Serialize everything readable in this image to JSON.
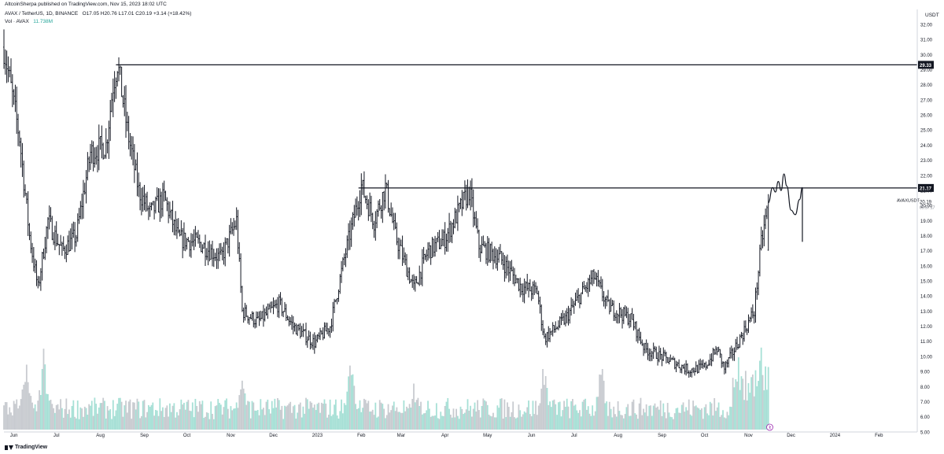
{
  "header": {
    "publisher": "AltcoinSherpa published on TradingView.com, Nov 15, 2023 18:02 UTC",
    "symbol": "AVAX / TetherUS, 1D, BINANCE",
    "ohlc": "O17.05 H20.76 L17.01 C20.19 +3.14 (+18.42%)",
    "vol_label": "Vol · AVAX",
    "vol_value": "11.738M"
  },
  "footer": {
    "brand": "TradingView"
  },
  "colors": {
    "bar": "#131722",
    "volume": "#c8cbd0",
    "volume_alt": "#a7e0d6",
    "line": "#131722",
    "accent": "#9c27b0"
  },
  "chart_data": {
    "type": "ohlc",
    "axis_unit": "USDT",
    "y_ticks": [
      "32.00",
      "31.00",
      "30.00",
      "29.00",
      "28.00",
      "27.00",
      "26.00",
      "25.00",
      "24.00",
      "23.00",
      "22.00",
      "21.00",
      "20.00",
      "19.00",
      "18.00",
      "17.00",
      "16.00",
      "15.00",
      "14.00",
      "13.00",
      "12.00",
      "11.00",
      "10.00",
      "9.00",
      "8.00",
      "7.00",
      "6.00",
      "5.00"
    ],
    "ylim": [
      5,
      33
    ],
    "x_ticks": [
      "Jun",
      "Jul",
      "Aug",
      "Sep",
      "Oct",
      "Nov",
      "Dec",
      "2023",
      "Feb",
      "Mar",
      "Apr",
      "May",
      "Jun",
      "Jul",
      "Aug",
      "Sep",
      "Oct",
      "Nov",
      "Dec",
      "2024",
      "Feb"
    ],
    "horizontal_levels": [
      {
        "value": 29.33,
        "label": "29.33"
      },
      {
        "value": 21.17,
        "label": "21.17"
      }
    ],
    "last_price": {
      "symbol": "AVAXUSDT",
      "value": "20.19",
      "countdown": "05:57:17"
    },
    "price_path": [
      [
        "2022-05-25",
        30.5
      ],
      [
        "2022-06-05",
        24.5
      ],
      [
        "2022-06-12",
        18.0
      ],
      [
        "2022-06-18",
        14.5
      ],
      [
        "2022-06-25",
        19.0
      ],
      [
        "2022-07-05",
        17.0
      ],
      [
        "2022-07-15",
        18.0
      ],
      [
        "2022-07-25",
        23.5
      ],
      [
        "2022-08-05",
        24.0
      ],
      [
        "2022-08-10",
        28.0
      ],
      [
        "2022-08-13",
        29.5
      ],
      [
        "2022-08-20",
        25.0
      ],
      [
        "2022-08-28",
        21.0
      ],
      [
        "2022-09-05",
        19.5
      ],
      [
        "2022-09-15",
        20.5
      ],
      [
        "2022-09-25",
        17.8
      ],
      [
        "2022-10-10",
        17.5
      ],
      [
        "2022-10-25",
        16.5
      ],
      [
        "2022-11-05",
        19.0
      ],
      [
        "2022-11-09",
        13.0
      ],
      [
        "2022-11-20",
        12.3
      ],
      [
        "2022-12-05",
        13.5
      ],
      [
        "2022-12-15",
        12.0
      ],
      [
        "2022-12-30",
        10.9
      ],
      [
        "2023-01-10",
        12.0
      ],
      [
        "2023-01-20",
        16.5
      ],
      [
        "2023-02-01",
        21.3
      ],
      [
        "2023-02-10",
        19.0
      ],
      [
        "2023-02-18",
        21.2
      ],
      [
        "2023-02-25",
        18.0
      ],
      [
        "2023-03-10",
        14.5
      ],
      [
        "2023-03-20",
        17.0
      ],
      [
        "2023-04-01",
        17.8
      ],
      [
        "2023-04-18",
        21.0
      ],
      [
        "2023-04-25",
        17.3
      ],
      [
        "2023-05-10",
        16.5
      ],
      [
        "2023-05-25",
        14.6
      ],
      [
        "2023-06-05",
        14.3
      ],
      [
        "2023-06-10",
        11.2
      ],
      [
        "2023-06-25",
        12.5
      ],
      [
        "2023-07-05",
        14.0
      ],
      [
        "2023-07-15",
        15.3
      ],
      [
        "2023-07-25",
        13.3
      ],
      [
        "2023-08-10",
        12.5
      ],
      [
        "2023-08-20",
        10.5
      ],
      [
        "2023-09-05",
        9.8
      ],
      [
        "2023-09-20",
        9.1
      ],
      [
        "2023-10-01",
        9.3
      ],
      [
        "2023-10-10",
        10.5
      ],
      [
        "2023-10-15",
        9.2
      ],
      [
        "2023-10-25",
        11.0
      ],
      [
        "2023-11-05",
        13.0
      ],
      [
        "2023-11-10",
        17.5
      ],
      [
        "2023-11-15",
        20.19
      ]
    ],
    "projection_path": [
      [
        "2023-11-15",
        20.2
      ],
      [
        "2023-11-18",
        21.2
      ],
      [
        "2023-11-20",
        20.9
      ],
      [
        "2023-11-22",
        21.6
      ],
      [
        "2023-11-24",
        21.0
      ],
      [
        "2023-11-26",
        22.1
      ],
      [
        "2023-11-28",
        21.3
      ],
      [
        "2023-12-01",
        19.7
      ],
      [
        "2023-12-04",
        19.4
      ],
      [
        "2023-12-07",
        20.4
      ],
      [
        "2023-12-09",
        21.2
      ]
    ],
    "projection_drop": [
      [
        "2023-12-09",
        21.2
      ],
      [
        "2023-12-09",
        17.6
      ]
    ],
    "volume_peaks": [
      [
        "2022-06-10",
        1.0
      ],
      [
        "2022-06-22",
        0.95
      ],
      [
        "2022-11-09",
        0.8
      ],
      [
        "2023-01-25",
        0.95
      ],
      [
        "2023-03-10",
        0.6
      ],
      [
        "2023-06-10",
        0.85
      ],
      [
        "2023-07-20",
        0.85
      ],
      [
        "2023-11-10",
        1.0
      ]
    ]
  }
}
